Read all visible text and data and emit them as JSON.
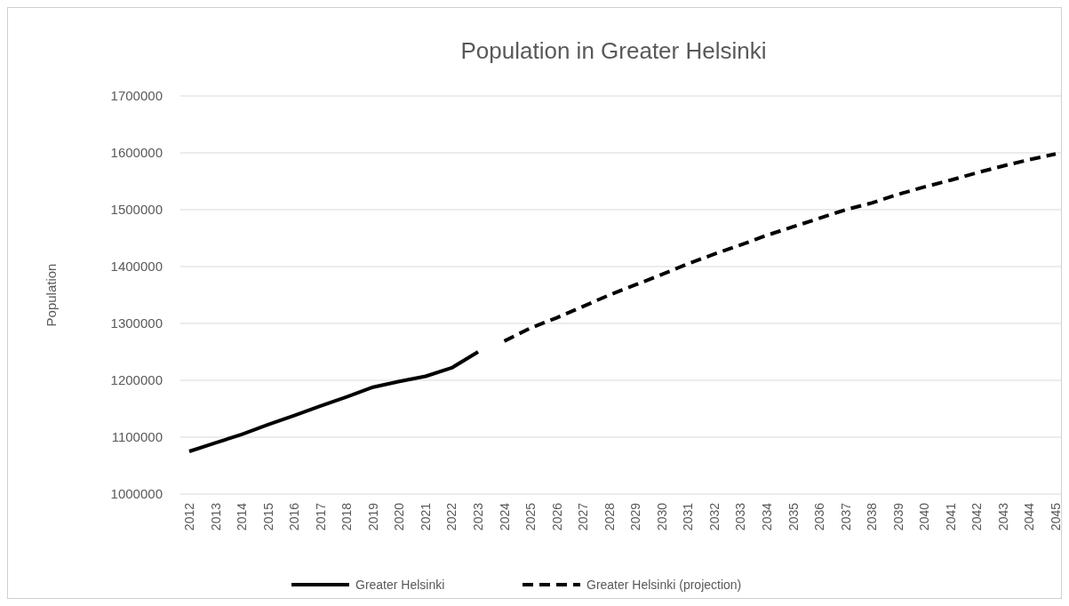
{
  "chart_data": {
    "type": "line",
    "title": "Population in Greater Helsinki",
    "ylabel": "Population",
    "categories": [
      "2012",
      "2013",
      "2014",
      "2015",
      "2016",
      "2017",
      "2018",
      "2019",
      "2020",
      "2021",
      "2022",
      "2023",
      "2024",
      "2025",
      "2026",
      "2027",
      "2028",
      "2029",
      "2030",
      "2031",
      "2032",
      "2033",
      "2034",
      "2035",
      "2036",
      "2037",
      "2038",
      "2039",
      "2040",
      "2041",
      "2042",
      "2043",
      "2044",
      "2045"
    ],
    "series": [
      {
        "name": "Greater Helsinki",
        "color": "#000000",
        "line_style": "solid",
        "values": [
          1075000,
          1090000,
          1105000,
          1122000,
          1138000,
          1155000,
          1171000,
          1188000,
          1198000,
          1207000,
          1222000,
          1250000,
          null,
          null,
          null,
          null,
          null,
          null,
          null,
          null,
          null,
          null,
          null,
          null,
          null,
          null,
          null,
          null,
          null,
          null,
          null,
          null,
          null,
          null
        ]
      },
      {
        "name": "Greater Helsinki (projection)",
        "color": "#000000",
        "line_style": "dashed",
        "values": [
          null,
          null,
          null,
          null,
          null,
          null,
          null,
          null,
          null,
          null,
          null,
          null,
          1269000,
          1292000,
          1310000,
          1330000,
          1350000,
          1368000,
          1386000,
          1405000,
          1422000,
          1438000,
          1455000,
          1470000,
          1485000,
          1500000,
          1512000,
          1527000,
          1540000,
          1552000,
          1565000,
          1577000,
          1588000,
          1598000
        ]
      }
    ],
    "ylim": [
      1000000,
      1700000
    ],
    "yticks": [
      1000000,
      1100000,
      1200000,
      1300000,
      1400000,
      1500000,
      1600000,
      1700000
    ],
    "grid": "y",
    "legend": "bottom",
    "marker": "none"
  }
}
